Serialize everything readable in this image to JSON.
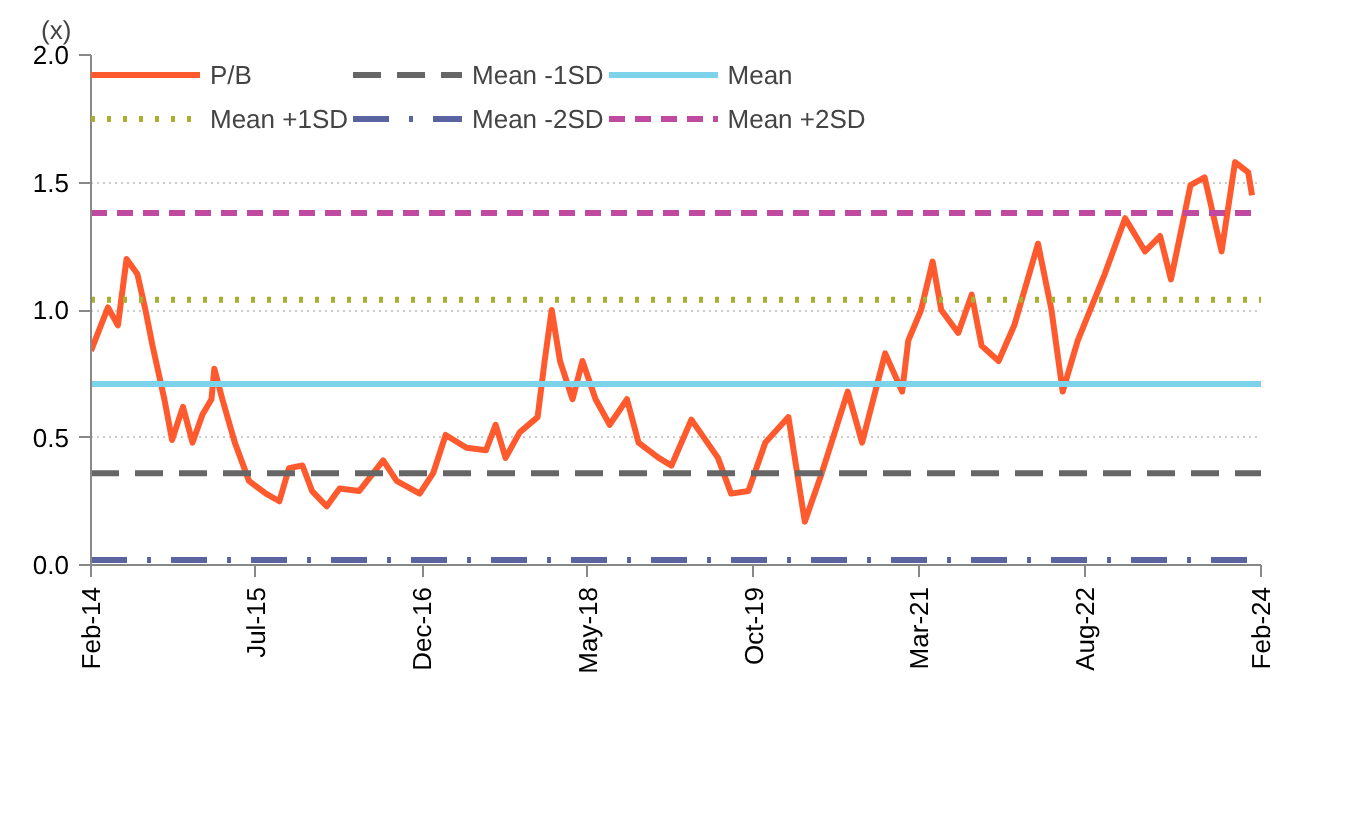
{
  "chart_data": {
    "type": "line",
    "ylabel": "(x)",
    "grid": "y",
    "legend": "top",
    "marker": "none",
    "xlim": [
      "2014-02-01",
      "2024-02-01"
    ],
    "xticks": [
      {
        "value": "2014-02-01",
        "label": "Feb-14"
      },
      {
        "value": "2015-07-01",
        "label": "Jul-15"
      },
      {
        "value": "2016-12-01",
        "label": "Dec-16"
      },
      {
        "value": "2018-05-01",
        "label": "May-18"
      },
      {
        "value": "2019-10-01",
        "label": "Oct-19"
      },
      {
        "value": "2021-03-01",
        "label": "Mar-21"
      },
      {
        "value": "2022-08-01",
        "label": "Aug-22"
      },
      {
        "value": "2024-02-01",
        "label": "Feb-24"
      }
    ],
    "ylim": [
      0,
      2
    ],
    "yticks": [
      {
        "value": 0,
        "label": "0.0"
      },
      {
        "value": 0.5,
        "label": "0.5"
      },
      {
        "value": 1,
        "label": "1.0"
      },
      {
        "value": 1.5,
        "label": "1.5"
      },
      {
        "value": 2,
        "label": "2.0"
      }
    ],
    "series": [
      {
        "name": "P/B",
        "color": "#ff5a2d",
        "line_style": "solid",
        "x": [
          "2014-02-01",
          "2014-03-26",
          "2014-04-26",
          "2014-05-23",
          "2014-06-26",
          "2014-07-21",
          "2014-08-12",
          "2014-09-18",
          "2014-10-12",
          "2014-11-15",
          "2014-12-15",
          "2015-01-15",
          "2015-02-12",
          "2015-02-21",
          "2015-03-18",
          "2015-04-26",
          "2015-06-09",
          "2015-08-01",
          "2015-09-12",
          "2015-10-12",
          "2015-11-23",
          "2015-12-23",
          "2016-02-07",
          "2016-03-18",
          "2016-05-18",
          "2016-08-01",
          "2016-09-12",
          "2016-11-23",
          "2017-01-04",
          "2017-02-12",
          "2017-04-18",
          "2017-06-18",
          "2017-07-18",
          "2017-08-18",
          "2017-10-01",
          "2017-11-26",
          "2017-12-18",
          "2018-01-09",
          "2018-02-04",
          "2018-03-15",
          "2018-04-15",
          "2018-05-26",
          "2018-07-09",
          "2018-09-01",
          "2018-10-07",
          "2018-12-09",
          "2019-01-18",
          "2019-03-21",
          "2019-06-12",
          "2019-07-23",
          "2019-09-15",
          "2019-11-07",
          "2020-01-18",
          "2020-02-18",
          "2020-03-09",
          "2020-05-01",
          "2020-07-21",
          "2020-09-04",
          "2020-11-15",
          "2021-01-07",
          "2021-01-26",
          "2021-03-07",
          "2021-04-12",
          "2021-05-09",
          "2021-07-01",
          "2021-08-12",
          "2021-09-12",
          "2021-11-04",
          "2021-12-23",
          "2022-03-07",
          "2022-04-18",
          "2022-05-23",
          "2022-07-09",
          "2022-10-01",
          "2022-12-04",
          "2023-02-04",
          "2023-03-23",
          "2023-04-26",
          "2023-06-26",
          "2023-08-09",
          "2023-10-01",
          "2023-11-12",
          "2023-12-23",
          "2024-01-04"
        ],
        "values": [
          0.84,
          1.01,
          0.94,
          1.2,
          1.14,
          1.0,
          0.86,
          0.65,
          0.49,
          0.62,
          0.48,
          0.59,
          0.65,
          0.77,
          0.65,
          0.48,
          0.33,
          0.28,
          0.25,
          0.38,
          0.39,
          0.29,
          0.23,
          0.3,
          0.29,
          0.41,
          0.33,
          0.28,
          0.36,
          0.51,
          0.46,
          0.45,
          0.55,
          0.42,
          0.52,
          0.58,
          0.8,
          1.0,
          0.8,
          0.65,
          0.8,
          0.65,
          0.55,
          0.65,
          0.48,
          0.42,
          0.39,
          0.57,
          0.42,
          0.28,
          0.29,
          0.48,
          0.58,
          0.33,
          0.17,
          0.36,
          0.68,
          0.48,
          0.83,
          0.68,
          0.88,
          1.0,
          1.19,
          1.0,
          0.91,
          1.06,
          0.86,
          0.8,
          0.94,
          1.26,
          1.0,
          0.68,
          0.88,
          1.14,
          1.36,
          1.23,
          1.29,
          1.12,
          1.49,
          1.52,
          1.23,
          1.58,
          1.54,
          1.45
        ]
      },
      {
        "name": "Mean +1SD",
        "color": "#a8b030",
        "line_style": "dotted",
        "x": [
          "2014-02-01",
          "2024-02-01"
        ],
        "values": [
          1.04,
          1.04
        ]
      },
      {
        "name": "Mean -1SD",
        "color": "#666666",
        "line_style": "dashed",
        "x": [
          "2014-02-01",
          "2024-02-01"
        ],
        "values": [
          0.36,
          0.36
        ]
      },
      {
        "name": "Mean -2SD",
        "color": "#5a64a0",
        "line_style": "dashdot",
        "x": [
          "2014-02-01",
          "2024-02-01"
        ],
        "values": [
          0.02,
          0.02
        ]
      },
      {
        "name": "Mean",
        "color": "#7dd3ea",
        "line_style": "solid",
        "x": [
          "2014-02-01",
          "2024-02-01"
        ],
        "values": [
          0.71,
          0.71
        ]
      },
      {
        "name": "Mean +2SD",
        "color": "#c04aa0",
        "line_style": "short-dashed",
        "x": [
          "2014-02-01",
          "2024-02-01"
        ],
        "values": [
          1.38,
          1.38
        ]
      }
    ]
  }
}
